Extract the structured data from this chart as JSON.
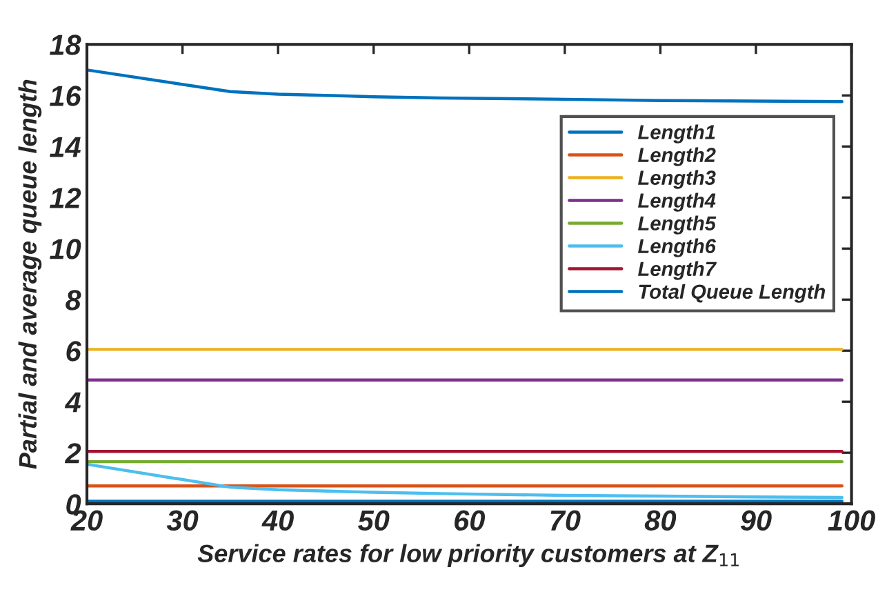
{
  "chart_data": {
    "type": "line",
    "xlabel": "Service rates for low priority customers at Z$_{11}$",
    "ylabel": "Partial and average queue length",
    "xlim": [
      20,
      100
    ],
    "xticks": [
      20,
      30,
      40,
      50,
      60,
      70,
      80,
      90,
      100
    ],
    "ylim": [
      0,
      18
    ],
    "yticks": [
      0,
      2,
      4,
      6,
      8,
      10,
      12,
      14,
      16,
      18
    ],
    "x": [
      20,
      35,
      40,
      50,
      57,
      70,
      80,
      90,
      99
    ],
    "series": [
      {
        "name": "Length1",
        "color": "#0072bd",
        "values": [
          0.1,
          0.1,
          0.1,
          0.1,
          0.1,
          0.1,
          0.1,
          0.1,
          0.1
        ]
      },
      {
        "name": "Length2",
        "color": "#d95319",
        "values": [
          0.7,
          0.7,
          0.7,
          0.7,
          0.7,
          0.7,
          0.7,
          0.7,
          0.7
        ]
      },
      {
        "name": "Length3",
        "color": "#edb120",
        "values": [
          6.05,
          6.05,
          6.05,
          6.05,
          6.05,
          6.05,
          6.05,
          6.05,
          6.05
        ]
      },
      {
        "name": "Length4",
        "color": "#7e2f8e",
        "values": [
          4.85,
          4.85,
          4.85,
          4.85,
          4.85,
          4.85,
          4.85,
          4.85,
          4.85
        ]
      },
      {
        "name": "Length5",
        "color": "#77ac30",
        "values": [
          1.65,
          1.65,
          1.65,
          1.65,
          1.65,
          1.65,
          1.65,
          1.65,
          1.65
        ]
      },
      {
        "name": "Length6",
        "color": "#4dbeee",
        "values": [
          1.55,
          0.65,
          0.55,
          0.45,
          0.4,
          0.33,
          0.3,
          0.27,
          0.25
        ]
      },
      {
        "name": "Length7",
        "color": "#a2142f",
        "values": [
          2.05,
          2.05,
          2.05,
          2.05,
          2.05,
          2.05,
          2.05,
          2.05,
          2.05
        ]
      },
      {
        "name": "Total Queue Length",
        "color": "#0072bd",
        "values": [
          17.0,
          16.15,
          16.05,
          15.95,
          15.9,
          15.85,
          15.8,
          15.78,
          15.76
        ]
      }
    ],
    "legend": "top right",
    "grid": false,
    "marker": "none",
    "line_style": "solid"
  }
}
